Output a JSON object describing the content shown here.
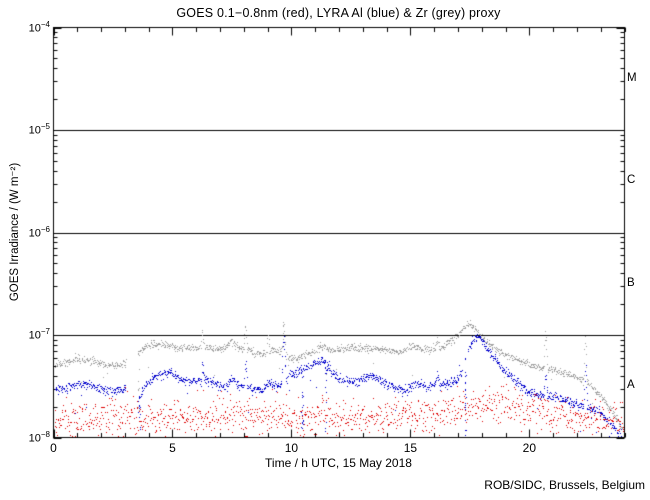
{
  "title": "GOES 0.1−0.8nm (red), LYRA Al (blue) & Zr (grey) proxy",
  "credit": "ROB/SIDC, Brussels, Belgium",
  "axes": {
    "x": {
      "label": "Time / h UTC, 15 May 2018",
      "min": 0,
      "max": 24,
      "labeled_ticks": [
        0,
        5,
        10,
        15,
        20
      ],
      "minor_step": 1,
      "major_step": 5
    },
    "y": {
      "label": "GOES Irradiance / (W m⁻²)",
      "scale": "log",
      "ticks": [
        {
          "exp_label": "−4",
          "value": 0.0001
        },
        {
          "exp_label": "−5",
          "value": 1e-05
        },
        {
          "exp_label": "−6",
          "value": 1e-06
        },
        {
          "exp_label": "−7",
          "value": 1e-07
        },
        {
          "exp_label": "−8",
          "value": 1e-08
        }
      ]
    }
  },
  "flare_classes": [
    {
      "label": "M",
      "decade_center": 3.16e-05
    },
    {
      "label": "C",
      "decade_center": 3.16e-06
    },
    {
      "label": "B",
      "decade_center": 3.16e-07
    },
    {
      "label": "A",
      "decade_center": 3.16e-08
    }
  ],
  "chart_data": {
    "type": "scatter",
    "xlim": [
      0,
      24
    ],
    "ylim": [
      1e-08,
      0.0001
    ],
    "x_unit": "hour UTC, 15 May 2018",
    "y_unit": "W m^-2",
    "class_boundary_lines": [
      1e-05,
      1e-06,
      1e-07
    ],
    "frame_color": "#000000",
    "series": [
      {
        "name": "LYRA Zr proxy",
        "color": "#a0a0a0",
        "marker": "dot",
        "jitter_dex": 0.018,
        "step_h": 0.016,
        "seed": 41,
        "low_outlier_p": 0.012,
        "anchors": [
          [
            0,
            5.2e-08
          ],
          [
            0.6,
            5.5e-08
          ],
          [
            1.1,
            6e-08
          ],
          [
            1.6,
            5.7e-08
          ],
          [
            2.1,
            5.2e-08
          ],
          [
            2.6,
            5.1e-08
          ],
          [
            3.0,
            5.4e-08
          ],
          [
            3.56,
            6.8e-08
          ],
          [
            3.9,
            7.8e-08
          ],
          [
            4.3,
            8.3e-08
          ],
          [
            4.8,
            8e-08
          ],
          [
            5.2,
            7.4e-08
          ],
          [
            5.6,
            7.7e-08
          ],
          [
            6.1,
            7.5e-08
          ],
          [
            6.19,
            7.6e-08
          ],
          [
            6.26,
            1.12e-07
          ],
          [
            6.33,
            7.6e-08
          ],
          [
            6.6,
            7.5e-08
          ],
          [
            7.1,
            7.3e-08
          ],
          [
            7.45,
            8.8e-08
          ],
          [
            7.8,
            7.4e-08
          ],
          [
            7.99,
            7.3e-08
          ],
          [
            8.06,
            1.3e-07
          ],
          [
            8.13,
            7.2e-08
          ],
          [
            8.35,
            6.9e-08
          ],
          [
            8.8,
            6.5e-08
          ],
          [
            8.93,
            6.8e-08
          ],
          [
            9.0,
            1e-07
          ],
          [
            9.08,
            7e-08
          ],
          [
            9.35,
            7e-08
          ],
          [
            9.58,
            7.2e-08
          ],
          [
            9.68,
            1.45e-07
          ],
          [
            9.78,
            6.4e-08
          ],
          [
            9.95,
            6.2e-08
          ],
          [
            10.25,
            5.8e-08
          ],
          [
            10.6,
            6.6e-08
          ],
          [
            11.0,
            7e-08
          ],
          [
            11.3,
            7.9e-08
          ],
          [
            11.65,
            7e-08
          ],
          [
            12.1,
            7.3e-08
          ],
          [
            12.6,
            7.6e-08
          ],
          [
            13.1,
            7.4e-08
          ],
          [
            13.6,
            7.6e-08
          ],
          [
            14.1,
            7e-08
          ],
          [
            14.6,
            6.9e-08
          ],
          [
            15.05,
            7.9e-08
          ],
          [
            15.5,
            7.1e-08
          ],
          [
            15.8,
            7.3e-08
          ],
          [
            16.04,
            7.4e-08
          ],
          [
            16.12,
            9.6e-08
          ],
          [
            16.2,
            7.5e-08
          ],
          [
            16.35,
            7.6e-08
          ],
          [
            16.7,
            8.8e-08
          ],
          [
            17.0,
            1e-07
          ],
          [
            17.25,
            1.2e-07
          ],
          [
            17.5,
            1.3e-07
          ],
          [
            17.75,
            1.12e-07
          ],
          [
            18.1,
            9e-08
          ],
          [
            18.45,
            7.6e-08
          ],
          [
            19.0,
            6.5e-08
          ],
          [
            19.6,
            5.6e-08
          ],
          [
            20.2,
            5e-08
          ],
          [
            20.6,
            4.8e-08
          ],
          [
            20.68,
            1.15e-07
          ],
          [
            20.76,
            4.7e-08
          ],
          [
            21.0,
            4.6e-08
          ],
          [
            21.6,
            4.2e-08
          ],
          [
            22.1,
            3.8e-08
          ],
          [
            22.28,
            3.6e-08
          ],
          [
            22.35,
            1.05e-07
          ],
          [
            22.42,
            3.5e-08
          ],
          [
            22.75,
            3e-08
          ],
          [
            23.2,
            2.2e-08
          ],
          [
            23.6,
            1.6e-08
          ],
          [
            23.95,
            1.15e-08
          ],
          [
            24,
            1.1e-08
          ]
        ],
        "gaps": [
          [
            3.03,
            3.52
          ]
        ],
        "dropouts": [
          [
            3.58,
            7e-08,
            1.6e-08,
            12
          ]
        ]
      },
      {
        "name": "LYRA Al proxy",
        "color": "#0000cc",
        "marker": "dot",
        "jitter_dex": 0.022,
        "step_h": 0.016,
        "seed": 1301,
        "low_outlier_p": 0.012,
        "anchors": [
          [
            0,
            2.9e-08
          ],
          [
            0.6,
            3.1e-08
          ],
          [
            1.1,
            3.4e-08
          ],
          [
            1.6,
            3.2e-08
          ],
          [
            2.1,
            2.95e-08
          ],
          [
            2.6,
            2.85e-08
          ],
          [
            3.0,
            3e-08
          ],
          [
            3.6,
            2.5e-08
          ],
          [
            3.9,
            3.4e-08
          ],
          [
            4.35,
            4e-08
          ],
          [
            4.85,
            4.4e-08
          ],
          [
            5.3,
            3.75e-08
          ],
          [
            5.7,
            3.5e-08
          ],
          [
            6.1,
            3.6e-08
          ],
          [
            6.19,
            3.6e-08
          ],
          [
            6.26,
            5.6e-08
          ],
          [
            6.33,
            3.6e-08
          ],
          [
            6.6,
            3.55e-08
          ],
          [
            7.0,
            3.3e-08
          ],
          [
            7.25,
            3.15e-08
          ],
          [
            7.5,
            3.8e-08
          ],
          [
            7.8,
            3.3e-08
          ],
          [
            7.99,
            3.2e-08
          ],
          [
            8.06,
            6e-08
          ],
          [
            8.13,
            3.1e-08
          ],
          [
            8.35,
            3e-08
          ],
          [
            8.8,
            2.9e-08
          ],
          [
            9.0,
            3.5e-08
          ],
          [
            9.35,
            3.2e-08
          ],
          [
            9.58,
            3.4e-08
          ],
          [
            9.68,
            1e-07
          ],
          [
            9.78,
            3.8e-08
          ],
          [
            9.95,
            4.1e-08
          ],
          [
            10.15,
            4.3e-08
          ],
          [
            10.7,
            5e-08
          ],
          [
            11.1,
            5.4e-08
          ],
          [
            11.35,
            5.6e-08
          ],
          [
            11.7,
            4.4e-08
          ],
          [
            12.0,
            3.8e-08
          ],
          [
            12.4,
            3.5e-08
          ],
          [
            12.8,
            3.6e-08
          ],
          [
            13.3,
            4.1e-08
          ],
          [
            13.9,
            3.4e-08
          ],
          [
            14.4,
            3.05e-08
          ],
          [
            14.9,
            2.95e-08
          ],
          [
            15.25,
            3.5e-08
          ],
          [
            15.7,
            3.2e-08
          ],
          [
            16.04,
            3.4e-08
          ],
          [
            16.12,
            4.4e-08
          ],
          [
            16.2,
            3.4e-08
          ],
          [
            16.5,
            3.3e-08
          ],
          [
            16.9,
            3.6e-08
          ],
          [
            17.15,
            4.2e-08
          ],
          [
            17.45,
            7.5e-08
          ],
          [
            17.75,
            1e-07
          ],
          [
            18.0,
            9e-08
          ],
          [
            18.5,
            5.9e-08
          ],
          [
            19.3,
            3.8e-08
          ],
          [
            20.0,
            2.75e-08
          ],
          [
            20.6,
            2.55e-08
          ],
          [
            20.68,
            4.2e-08
          ],
          [
            20.76,
            2.5e-08
          ],
          [
            21.0,
            2.5e-08
          ],
          [
            21.6,
            2.3e-08
          ],
          [
            22.1,
            2.1e-08
          ],
          [
            22.28,
            2.05e-08
          ],
          [
            22.35,
            5.2e-08
          ],
          [
            22.42,
            2e-08
          ],
          [
            22.75,
            1.9e-08
          ],
          [
            23.2,
            1.55e-08
          ],
          [
            23.6,
            1.25e-08
          ],
          [
            23.95,
            8.5e-09
          ],
          [
            24,
            8e-09
          ]
        ],
        "gaps": [
          [
            3.03,
            3.56
          ],
          [
            17.18,
            17.42
          ]
        ],
        "dropouts": [
          [
            3.6,
            2.6e-08,
            1.1e-08,
            10
          ],
          [
            10.45,
            4.5e-08,
            9.5e-09,
            16
          ],
          [
            11.45,
            5e-08,
            9e-09,
            14
          ],
          [
            17.3,
            6e-08,
            8.5e-09,
            20
          ],
          [
            23.82,
            1.4e-08,
            8e-09,
            8
          ]
        ]
      },
      {
        "name": "GOES 0.1-0.8nm",
        "color": "#dd0000",
        "marker": "dot",
        "jitter_dex": 0.085,
        "step_h": 0.02,
        "seed": 977,
        "high_outlier_p": 0.012,
        "anchors": [
          [
            0,
            1.5e-08
          ],
          [
            2,
            1.55e-08
          ],
          [
            4,
            1.6e-08
          ],
          [
            6,
            1.55e-08
          ],
          [
            8,
            1.6e-08
          ],
          [
            10,
            1.55e-08
          ],
          [
            12,
            1.6e-08
          ],
          [
            14,
            1.6e-08
          ],
          [
            16,
            1.65e-08
          ],
          [
            17,
            1.9e-08
          ],
          [
            17.8,
            2.15e-08
          ],
          [
            18.6,
            2.1e-08
          ],
          [
            19.5,
            1.95e-08
          ],
          [
            20.5,
            1.8e-08
          ],
          [
            21.5,
            1.7e-08
          ],
          [
            22.5,
            1.55e-08
          ],
          [
            23.5,
            1.45e-08
          ],
          [
            24,
            1.4e-08
          ]
        ],
        "gaps": [],
        "dropouts": [
          [
            8.05,
            1.3e-08,
            8.5e-09,
            6
          ],
          [
            10.5,
            1.2e-08,
            9e-09,
            4
          ]
        ]
      }
    ]
  }
}
